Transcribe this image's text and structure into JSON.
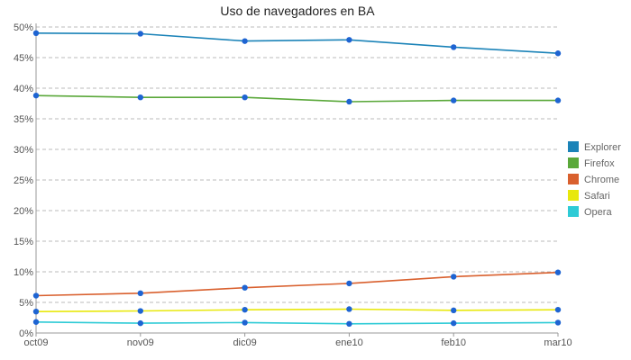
{
  "chart_data": {
    "type": "line",
    "title": "Uso de navegadores en BA",
    "xlabel": "",
    "ylabel": "",
    "categories": [
      "oct09",
      "nov09",
      "dic09",
      "ene10",
      "feb10",
      "mar10"
    ],
    "ylim": [
      0,
      50
    ],
    "yticks": [
      0,
      5,
      10,
      15,
      20,
      25,
      30,
      35,
      40,
      45,
      50
    ],
    "ytick_suffix": "%",
    "grid": true,
    "legend_position": "right",
    "marker_color": "#1e64d2",
    "series": [
      {
        "name": "Explorer",
        "color": "#1b83b8",
        "values": [
          49.0,
          48.9,
          47.7,
          47.9,
          46.7,
          45.7
        ]
      },
      {
        "name": "Firefox",
        "color": "#5aa83a",
        "values": [
          38.8,
          38.5,
          38.5,
          37.8,
          38.0,
          38.0
        ]
      },
      {
        "name": "Chrome",
        "color": "#d9602e",
        "values": [
          6.1,
          6.5,
          7.4,
          8.1,
          9.2,
          9.9
        ]
      },
      {
        "name": "Safari",
        "color": "#e8e80c",
        "values": [
          3.5,
          3.6,
          3.8,
          3.9,
          3.7,
          3.8
        ]
      },
      {
        "name": "Opera",
        "color": "#2ecbd6",
        "values": [
          1.8,
          1.6,
          1.7,
          1.5,
          1.6,
          1.7
        ]
      }
    ]
  }
}
